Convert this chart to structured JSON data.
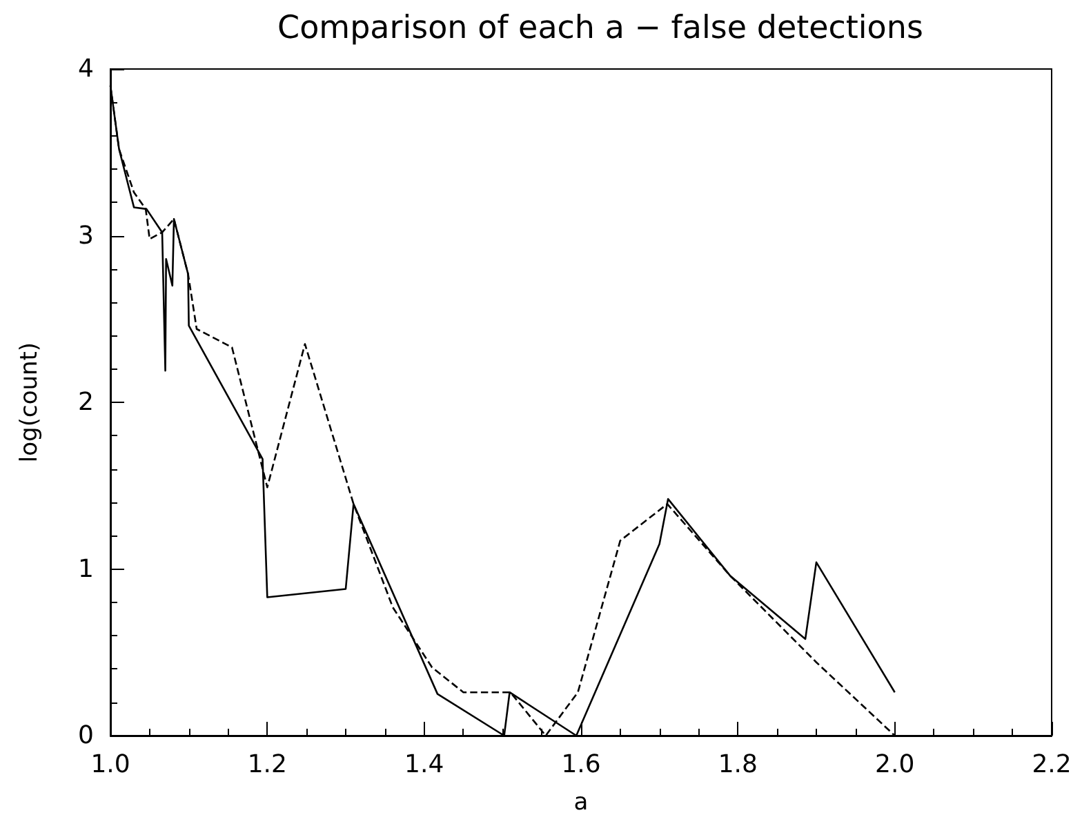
{
  "chart_data": {
    "type": "line",
    "title": "Comparison of each a − false detections",
    "xlabel": "a",
    "ylabel": "log(count)",
    "xlim": [
      1.0,
      2.2
    ],
    "ylim": [
      0,
      4
    ],
    "xticks": [
      {
        "value": 1.0,
        "label": "1.0"
      },
      {
        "value": 1.2,
        "label": "1.2"
      },
      {
        "value": 1.4,
        "label": "1.4"
      },
      {
        "value": 1.6,
        "label": "1.6"
      },
      {
        "value": 1.8,
        "label": "1.8"
      },
      {
        "value": 2.0,
        "label": "2.0"
      },
      {
        "value": 2.2,
        "label": "2.2"
      }
    ],
    "yticks": [
      0,
      1,
      2,
      3,
      4
    ],
    "grid": false,
    "marker": "none",
    "series": [
      {
        "color": "#000000",
        "line_style": "solid",
        "x": [
          1.0,
          1.011,
          1.03,
          1.046,
          1.066,
          1.07,
          1.071,
          1.079,
          1.081,
          1.099,
          1.1,
          1.194,
          1.2,
          1.3,
          1.31,
          1.417,
          1.502,
          1.509,
          1.594,
          1.7,
          1.711,
          1.79,
          1.886,
          1.9,
          2.0
        ],
        "values": [
          3.9,
          3.52,
          3.17,
          3.16,
          3.02,
          2.19,
          2.86,
          2.7,
          3.1,
          2.77,
          2.46,
          1.66,
          0.83,
          0.88,
          1.39,
          0.25,
          0,
          0.26,
          0,
          1.15,
          1.42,
          0.96,
          0.58,
          1.04,
          0.26
        ]
      },
      {
        "color": "#000000",
        "line_style": "dashed",
        "x": [
          1.0,
          1.011,
          1.03,
          1.045,
          1.05,
          1.066,
          1.081,
          1.099,
          1.11,
          1.155,
          1.2,
          1.248,
          1.31,
          1.36,
          1.41,
          1.45,
          1.51,
          1.555,
          1.596,
          1.65,
          1.71,
          1.79,
          1.9,
          2.0
        ],
        "values": [
          3.9,
          3.52,
          3.26,
          3.16,
          2.98,
          3.02,
          3.1,
          2.77,
          2.44,
          2.33,
          1.49,
          2.35,
          1.39,
          0.77,
          0.41,
          0.26,
          0.26,
          0,
          0.26,
          1.17,
          1.39,
          0.96,
          0.44,
          0
        ]
      }
    ]
  }
}
